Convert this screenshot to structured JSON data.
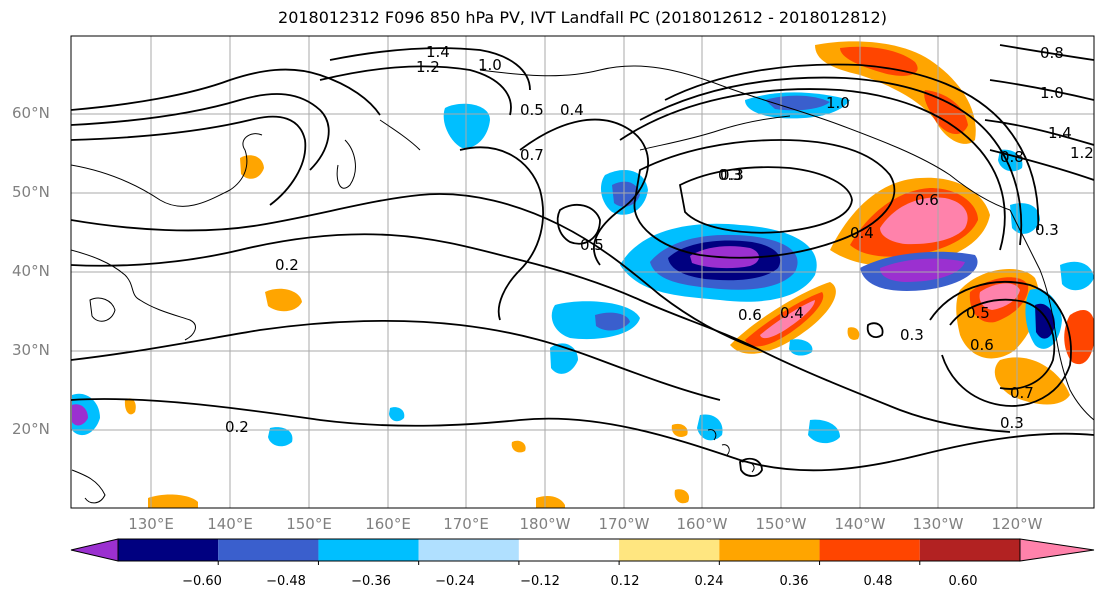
{
  "title": "2018012312 F096 850 hPa PV, IVT Landfall PC (2018012612 - 2018012812)",
  "lat_labels": [
    "60°N",
    "50°N",
    "40°N",
    "30°N",
    "20°N"
  ],
  "lon_labels": [
    "130°E",
    "140°E",
    "150°E",
    "160°E",
    "170°E",
    "180°W",
    "170°W",
    "160°W",
    "150°W",
    "140°W",
    "130°W",
    "120°W"
  ],
  "colorbar": {
    "ticks": [
      "−0.60",
      "−0.48",
      "−0.36",
      "−0.24",
      "−0.12",
      "0.12",
      "0.24",
      "0.36",
      "0.48",
      "0.60"
    ],
    "colors": [
      "#9b30d0",
      "#000080",
      "#3a5fcd",
      "#00bfff",
      "#b0e0ff",
      "#ffffff",
      "#ffe680",
      "#ffa500",
      "#ff4500",
      "#b22222",
      "#ff82ab"
    ]
  },
  "contour_labels": [
    "1.4",
    "1.2",
    "1.0",
    "0.5",
    "0.4",
    "0.3",
    "1.0",
    "0.8",
    "1.0",
    "1.4",
    "1.2",
    "0.8",
    "0.3",
    "0.5",
    "0.6",
    "0.4",
    "0.4",
    "0.6",
    "0.3",
    "0.3",
    "0.6",
    "0.7",
    "0.3",
    "0.2",
    "0.2",
    "0.5",
    "0.7"
  ]
}
